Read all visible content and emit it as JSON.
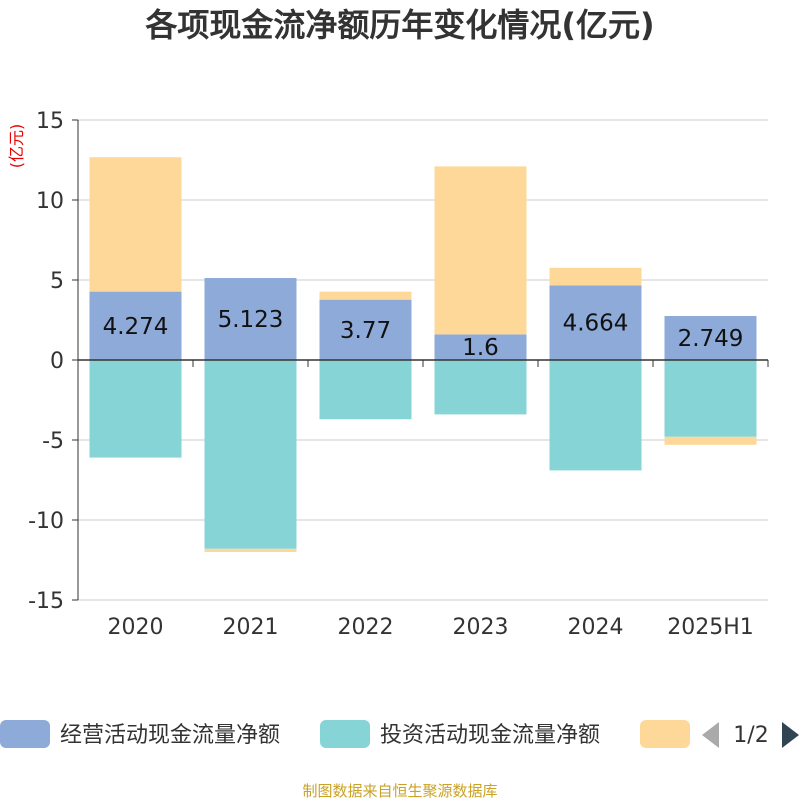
{
  "title": "各项现金流净额历年变化情况(亿元)",
  "unit_label": "(亿元)",
  "source": "制图数据来自恒生聚源数据库",
  "legend": {
    "items": [
      {
        "label": "经营活动现金流量净额",
        "color": "#8eaad9"
      },
      {
        "label": "投资活动现金流量净额",
        "color": "#86d4d6"
      },
      {
        "label": "",
        "color": "#fdd899"
      }
    ],
    "page": "1/2",
    "prev_icon": "triangle-left-icon",
    "next_icon": "triangle-right-icon"
  },
  "chart_data": {
    "type": "bar",
    "stacked": true,
    "categories": [
      "2020",
      "2021",
      "2022",
      "2023",
      "2024",
      "2025H1"
    ],
    "ylim": [
      -15,
      15
    ],
    "yticks": [
      15,
      10,
      5,
      0,
      -5,
      -10,
      -15
    ],
    "grid": true,
    "legend_position": "bottom",
    "series": [
      {
        "name": "经营活动现金流量净额",
        "color": "#8eaad9",
        "values": [
          4.274,
          5.123,
          3.77,
          1.6,
          4.664,
          2.749
        ],
        "labels": [
          "4.274",
          "5.123",
          "3.77",
          "1.6",
          "4.664",
          "2.749"
        ]
      },
      {
        "name": "投资活动现金流量净额",
        "color": "#86d4d6",
        "values": [
          -6.1,
          -11.8,
          -3.7,
          -3.4,
          -6.9,
          -4.8
        ]
      },
      {
        "color": "#fdd899",
        "values": [
          8.4,
          -0.2,
          0.5,
          10.5,
          1.1,
          -0.5
        ]
      }
    ]
  }
}
